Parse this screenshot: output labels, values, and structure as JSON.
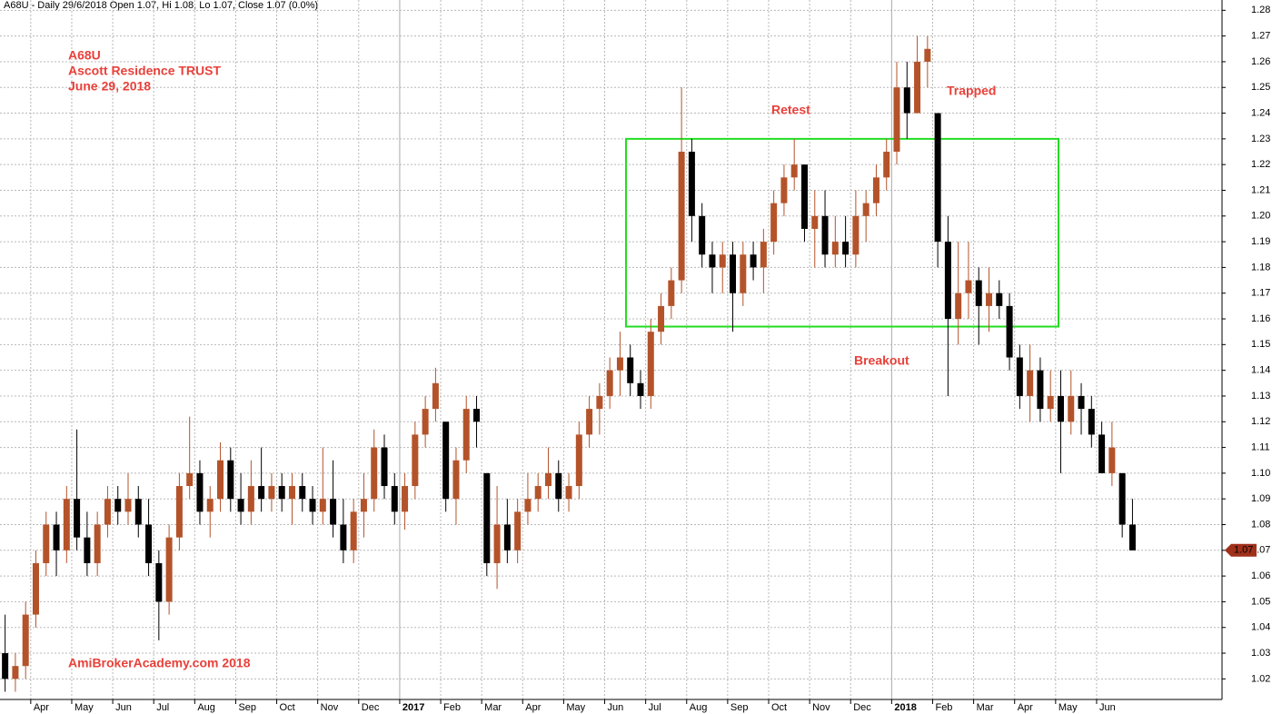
{
  "header": "A68U - Daily 29/6/2018 Open 1.07, Hi 1.08, Lo 1.07, Close 1.07 (0.0%)",
  "chart_data": {
    "type": "candlestick",
    "annotations": {
      "symbol": "A68U",
      "company": "Ascott Residence TRUST",
      "date": "June 29, 2018",
      "retest": "Retest",
      "trapped": "Trapped",
      "breakout": "Breakout",
      "watermark": "AmiBrokerAcademy.com  2018"
    },
    "up_color": "#b4532a",
    "down_color": "#000000",
    "box_color": "#22dd22",
    "grid": true,
    "ylim": [
      1.012,
      1.284
    ],
    "yticks": [
      1.02,
      1.03,
      1.04,
      1.05,
      1.06,
      1.07,
      1.08,
      1.09,
      {
        "value": 1.1,
        "label": "1.10"
      },
      1.11,
      1.12,
      1.13,
      1.14,
      1.15,
      1.16,
      1.17,
      1.18,
      1.19,
      {
        "value": 1.2,
        "label": "1.20"
      },
      1.21,
      1.22,
      1.23,
      1.24,
      1.25,
      1.26,
      1.27,
      1.28
    ],
    "last_price": 1.07,
    "box_range": [
      1.157,
      1.23
    ],
    "categories": [
      null,
      "Apr",
      "May",
      "Jun",
      "Jul",
      "Aug",
      "Sep",
      "Oct",
      "Nov",
      "Dec",
      "2017",
      "Feb",
      "Mar",
      "Apr",
      "May",
      "Jun",
      "Jul",
      "Aug",
      "Sep",
      "Oct",
      "Nov",
      "Dec",
      "2018",
      "Feb",
      "Mar",
      "Apr",
      "May",
      "Jun"
    ],
    "candles": [
      [
        [
          1.03,
          1.045,
          1.015,
          1.02
        ],
        [
          1.02,
          1.03,
          1.015,
          1.025
        ],
        [
          1.025,
          1.05,
          1.02,
          1.045
        ]
      ],
      [
        [
          1.045,
          1.07,
          1.04,
          1.065
        ],
        [
          1.065,
          1.085,
          1.06,
          1.08
        ],
        [
          1.08,
          1.085,
          1.06,
          1.07
        ],
        [
          1.07,
          1.095,
          1.065,
          1.09
        ]
      ],
      [
        [
          1.09,
          1.117,
          1.07,
          1.075
        ],
        [
          1.075,
          1.085,
          1.06,
          1.065
        ],
        [
          1.065,
          1.085,
          1.06,
          1.08
        ],
        [
          1.08,
          1.095,
          1.075,
          1.09
        ]
      ],
      [
        [
          1.09,
          1.095,
          1.08,
          1.085
        ],
        [
          1.085,
          1.1,
          1.08,
          1.09
        ],
        [
          1.09,
          1.095,
          1.075,
          1.08
        ],
        [
          1.08,
          1.09,
          1.06,
          1.065
        ]
      ],
      [
        [
          1.065,
          1.07,
          1.035,
          1.05
        ],
        [
          1.05,
          1.08,
          1.045,
          1.075
        ],
        [
          1.075,
          1.1,
          1.07,
          1.095
        ],
        [
          1.095,
          1.122,
          1.09,
          1.1
        ]
      ],
      [
        [
          1.1,
          1.105,
          1.08,
          1.085
        ],
        [
          1.085,
          1.095,
          1.075,
          1.09
        ],
        [
          1.09,
          1.112,
          1.085,
          1.105
        ],
        [
          1.105,
          1.11,
          1.085,
          1.09
        ]
      ],
      [
        [
          1.09,
          1.1,
          1.08,
          1.085
        ],
        [
          1.085,
          1.105,
          1.08,
          1.095
        ],
        [
          1.095,
          1.11,
          1.085,
          1.09
        ],
        [
          1.09,
          1.1,
          1.085,
          1.095
        ]
      ],
      [
        [
          1.095,
          1.1,
          1.085,
          1.09
        ],
        [
          1.09,
          1.1,
          1.08,
          1.095
        ],
        [
          1.095,
          1.1,
          1.085,
          1.09
        ],
        [
          1.09,
          1.095,
          1.08,
          1.085
        ]
      ],
      [
        [
          1.085,
          1.11,
          1.08,
          1.09
        ],
        [
          1.09,
          1.105,
          1.075,
          1.08
        ],
        [
          1.08,
          1.09,
          1.065,
          1.07
        ],
        [
          1.07,
          1.09,
          1.065,
          1.085
        ]
      ],
      [
        [
          1.085,
          1.1,
          1.075,
          1.09
        ],
        [
          1.09,
          1.117,
          1.085,
          1.11
        ],
        [
          1.11,
          1.115,
          1.09,
          1.095
        ],
        [
          1.095,
          1.1,
          1.08,
          1.085
        ]
      ],
      [
        [
          1.085,
          1.1,
          1.078,
          1.095
        ],
        [
          1.095,
          1.12,
          1.09,
          1.115
        ],
        [
          1.115,
          1.13,
          1.11,
          1.125
        ],
        [
          1.125,
          1.141,
          1.12,
          1.135
        ]
      ],
      [
        [
          1.12,
          1.12,
          1.085,
          1.09
        ],
        [
          1.09,
          1.11,
          1.08,
          1.105
        ],
        [
          1.105,
          1.13,
          1.1,
          1.125
        ],
        [
          1.125,
          1.13,
          1.11,
          1.12
        ]
      ],
      [
        [
          1.1,
          1.1,
          1.06,
          1.065
        ],
        [
          1.065,
          1.095,
          1.055,
          1.08
        ],
        [
          1.08,
          1.09,
          1.065,
          1.07
        ],
        [
          1.07,
          1.09,
          1.065,
          1.085
        ]
      ],
      [
        [
          1.085,
          1.1,
          1.08,
          1.09
        ],
        [
          1.09,
          1.1,
          1.085,
          1.095
        ],
        [
          1.095,
          1.11,
          1.09,
          1.1
        ],
        [
          1.1,
          1.105,
          1.085,
          1.09
        ]
      ],
      [
        [
          1.09,
          1.1,
          1.085,
          1.095
        ],
        [
          1.095,
          1.12,
          1.09,
          1.115
        ],
        [
          1.115,
          1.13,
          1.11,
          1.125
        ],
        [
          1.125,
          1.135,
          1.115,
          1.13
        ]
      ],
      [
        [
          1.13,
          1.145,
          1.125,
          1.14
        ],
        [
          1.14,
          1.155,
          1.13,
          1.145
        ],
        [
          1.145,
          1.15,
          1.13,
          1.135
        ],
        [
          1.135,
          1.14,
          1.125,
          1.13
        ]
      ],
      [
        [
          1.13,
          1.16,
          1.125,
          1.155
        ],
        [
          1.155,
          1.17,
          1.15,
          1.165
        ],
        [
          1.165,
          1.18,
          1.16,
          1.175
        ],
        [
          1.175,
          1.25,
          1.17,
          1.225
        ]
      ],
      [
        [
          1.225,
          1.23,
          1.19,
          1.2
        ],
        [
          1.2,
          1.205,
          1.18,
          1.185
        ],
        [
          1.185,
          1.19,
          1.17,
          1.18
        ],
        [
          1.18,
          1.19,
          1.17,
          1.185
        ]
      ],
      [
        [
          1.185,
          1.19,
          1.155,
          1.17
        ],
        [
          1.17,
          1.19,
          1.165,
          1.185
        ],
        [
          1.185,
          1.19,
          1.175,
          1.18
        ],
        [
          1.18,
          1.195,
          1.17,
          1.19
        ]
      ],
      [
        [
          1.19,
          1.21,
          1.185,
          1.205
        ],
        [
          1.205,
          1.22,
          1.2,
          1.215
        ],
        [
          1.215,
          1.23,
          1.21,
          1.22
        ],
        [
          1.22,
          1.22,
          1.19,
          1.195
        ]
      ],
      [
        [
          1.195,
          1.21,
          1.18,
          1.2
        ],
        [
          1.2,
          1.21,
          1.18,
          1.185
        ],
        [
          1.185,
          1.2,
          1.18,
          1.19
        ],
        [
          1.19,
          1.2,
          1.18,
          1.185
        ]
      ],
      [
        [
          1.185,
          1.21,
          1.18,
          1.2
        ],
        [
          1.2,
          1.21,
          1.19,
          1.205
        ],
        [
          1.205,
          1.22,
          1.2,
          1.215
        ],
        [
          1.215,
          1.23,
          1.21,
          1.225
        ]
      ],
      [
        [
          1.225,
          1.26,
          1.22,
          1.25
        ],
        [
          1.25,
          1.26,
          1.23,
          1.24
        ],
        [
          1.24,
          1.27,
          1.24,
          1.26
        ],
        [
          1.26,
          1.27,
          1.25,
          1.265
        ]
      ],
      [
        [
          1.24,
          1.24,
          1.18,
          1.19
        ],
        [
          1.19,
          1.2,
          1.13,
          1.16
        ],
        [
          1.16,
          1.19,
          1.15,
          1.17
        ],
        [
          1.17,
          1.19,
          1.16,
          1.175
        ]
      ],
      [
        [
          1.175,
          1.18,
          1.15,
          1.165
        ],
        [
          1.165,
          1.18,
          1.155,
          1.17
        ],
        [
          1.17,
          1.175,
          1.16,
          1.165
        ],
        [
          1.165,
          1.17,
          1.14,
          1.145
        ]
      ],
      [
        [
          1.145,
          1.15,
          1.125,
          1.13
        ],
        [
          1.13,
          1.15,
          1.12,
          1.14
        ],
        [
          1.14,
          1.145,
          1.12,
          1.125
        ],
        [
          1.125,
          1.14,
          1.12,
          1.13
        ]
      ],
      [
        [
          1.13,
          1.14,
          1.1,
          1.12
        ],
        [
          1.12,
          1.14,
          1.115,
          1.13
        ],
        [
          1.13,
          1.135,
          1.115,
          1.125
        ],
        [
          1.125,
          1.13,
          1.11,
          1.115
        ]
      ],
      [
        [
          1.115,
          1.12,
          1.1,
          1.1
        ],
        [
          1.1,
          1.12,
          1.095,
          1.11
        ],
        [
          1.1,
          1.1,
          1.075,
          1.08
        ],
        [
          1.08,
          1.09,
          1.07,
          1.07
        ]
      ]
    ]
  }
}
